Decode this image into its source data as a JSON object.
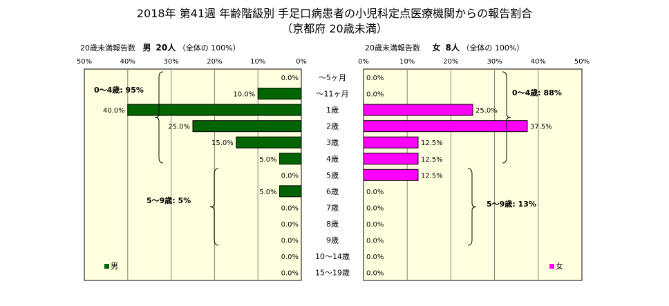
{
  "title_line1": "2018年 第41週 年齢階級別 手足口病患者の小児科定点医療機関からの報告割合",
  "title_line2": "（京都府 20歳未満）",
  "male_header": {
    "prefix": "20歳未満報告数",
    "sex": "男",
    "count": "20人",
    "total": "（全体の 100%）"
  },
  "female_header": {
    "prefix": "20歳未満報告数",
    "sex": "女",
    "count": "8人",
    "total": "（全体の 100%）"
  },
  "colors": {
    "male": "#006400",
    "female": "#ff00ff",
    "background": "#ffffe0"
  },
  "annotations": {
    "male_0_4": "0～4歳: 95%",
    "male_5_9": "5～9歳: 5%",
    "female_0_4": "0～4歳: 88%",
    "female_5_9": "5～9歳: 13%"
  },
  "chart_data": {
    "type": "bar",
    "orientation": "horizontal-butterfly",
    "categories": [
      "～5ヶ月",
      "～11ヶ月",
      "1歳",
      "2歳",
      "3歳",
      "4歳",
      "5歳",
      "6歳",
      "7歳",
      "8歳",
      "9歳",
      "10～14歳",
      "15～19歳"
    ],
    "series": [
      {
        "name": "男",
        "values": [
          0.0,
          10.0,
          40.0,
          25.0,
          15.0,
          5.0,
          0.0,
          5.0,
          0.0,
          0.0,
          0.0,
          0.0,
          0.0
        ],
        "labels": [
          "0.0%",
          "10.0%",
          "40.0%",
          "25.0%",
          "15.0%",
          "5.0%",
          "0.0%",
          "5.0%",
          "0.0%",
          "0.0%",
          "0.0%",
          "0.0%",
          "0.0%"
        ]
      },
      {
        "name": "女",
        "values": [
          0.0,
          0.0,
          25.0,
          37.5,
          12.5,
          12.5,
          12.5,
          0.0,
          0.0,
          0.0,
          0.0,
          0.0,
          0.0
        ],
        "labels": [
          "0.0%",
          "0.0%",
          "25.0%",
          "37.5%",
          "12.5%",
          "12.5%",
          "12.5%",
          "0.0%",
          "0.0%",
          "0.0%",
          "0.0%",
          "0.0%",
          "0.0%"
        ]
      }
    ],
    "xlim": [
      0,
      50
    ],
    "male_axis_ticks": [
      "50%",
      "40%",
      "30%",
      "20%",
      "10%",
      "0%"
    ],
    "female_axis_ticks": [
      "0%",
      "10%",
      "20%",
      "30%",
      "40%",
      "50%"
    ],
    "grid": true,
    "legend": "bottom"
  }
}
